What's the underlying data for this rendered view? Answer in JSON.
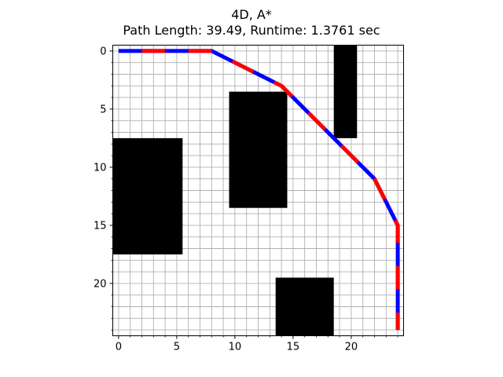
{
  "title_line1": "4D, A*",
  "title_line2": "Path Length: 39.49, Runtime: 1.3761 sec",
  "chart_data": {
    "type": "grid-path",
    "title": "4D, A*",
    "subtitle": "Path Length: 39.49, Runtime: 1.3761 sec",
    "xlim": [
      -0.5,
      24.5
    ],
    "ylim": [
      24.5,
      -0.5
    ],
    "y_inverted": true,
    "grid": true,
    "x_major_ticks": [
      0,
      5,
      10,
      15,
      20
    ],
    "y_major_ticks": [
      0,
      5,
      10,
      15,
      20
    ],
    "x_tick_labels": [
      "0",
      "5",
      "10",
      "15",
      "20"
    ],
    "y_tick_labels": [
      "0",
      "5",
      "10",
      "15",
      "20"
    ],
    "obstacles": [
      {
        "x0": 18.5,
        "x1": 20.5,
        "y0": -0.5,
        "y1": 7.5
      },
      {
        "x0": 9.5,
        "x1": 14.5,
        "y0": 3.5,
        "y1": 13.5
      },
      {
        "x0": -0.5,
        "x1": 5.5,
        "y0": 7.5,
        "y1": 17.5
      },
      {
        "x0": 13.5,
        "x1": 18.5,
        "y0": 19.5,
        "y1": 24.5
      }
    ],
    "path": [
      [
        0,
        0
      ],
      [
        8,
        0
      ],
      [
        10,
        1
      ],
      [
        12,
        2
      ],
      [
        14,
        3
      ],
      [
        16,
        5
      ],
      [
        18,
        7
      ],
      [
        20,
        9
      ],
      [
        22,
        11
      ],
      [
        23,
        13
      ],
      [
        24,
        15
      ],
      [
        24,
        24
      ]
    ],
    "path_colors": [
      "#0000ff",
      "#ff0000"
    ],
    "obstacle_color": "#000000",
    "grid_color": "#b0b0b0"
  }
}
